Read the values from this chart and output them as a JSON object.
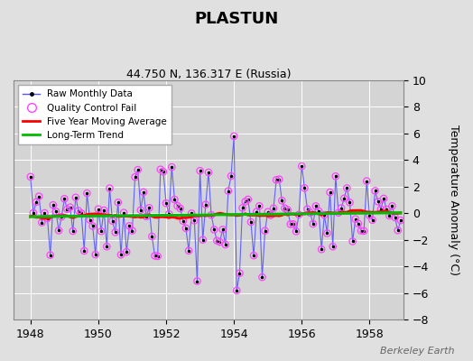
{
  "title": "PLASTUN",
  "subtitle": "44.750 N, 136.317 E (Russia)",
  "ylabel": "Temperature Anomaly (°C)",
  "credit": "Berkeley Earth",
  "xlim": [
    1947.5,
    1959.0
  ],
  "ylim": [
    -8,
    10
  ],
  "yticks": [
    -8,
    -6,
    -4,
    -2,
    0,
    2,
    4,
    6,
    8,
    10
  ],
  "xticks": [
    1948,
    1950,
    1952,
    1954,
    1956,
    1958
  ],
  "bg_color": "#e0e0e0",
  "plot_bg_color": "#d4d4d4",
  "raw_line_color": "#5555ff",
  "raw_dot_color": "#000000",
  "qc_color": "#ff44ff",
  "moving_avg_color": "#ff0000",
  "trend_color": "#00bb00",
  "start_year": 1948,
  "n_months": 132
}
